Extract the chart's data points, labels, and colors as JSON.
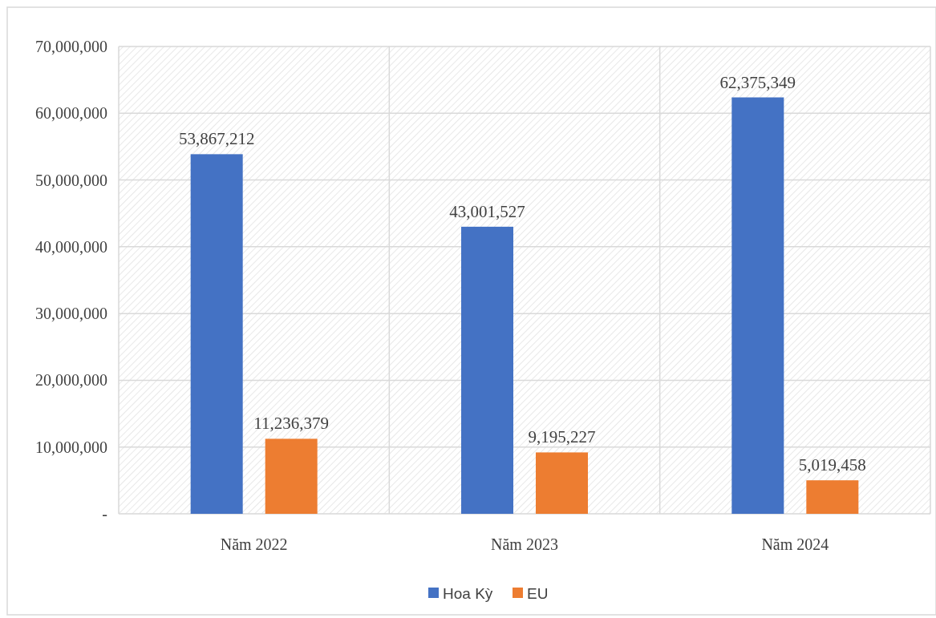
{
  "chart_data": {
    "type": "bar",
    "categories": [
      "Năm 2022",
      "Năm 2023",
      "Năm 2024"
    ],
    "series": [
      {
        "name": "Hoa Kỳ",
        "color": "#4472c4",
        "values": [
          53867212,
          43001527,
          62375349
        ],
        "value_labels": [
          "53,867,212",
          "43,001,527",
          "62,375,349"
        ]
      },
      {
        "name": "EU",
        "color": "#ed7d31",
        "values": [
          11236379,
          9195227,
          5019458
        ],
        "value_labels": [
          "11,236,379",
          "9,195,227",
          "5,019,458"
        ]
      }
    ],
    "ylim": [
      0,
      70000000
    ],
    "yticks": [
      {
        "value": 0,
        "label": "-"
      },
      {
        "value": 10000000,
        "label": "10,000,000"
      },
      {
        "value": 20000000,
        "label": "20,000,000"
      },
      {
        "value": 30000000,
        "label": "30,000,000"
      },
      {
        "value": 40000000,
        "label": "40,000,000"
      },
      {
        "value": 50000000,
        "label": "50,000,000"
      },
      {
        "value": 60000000,
        "label": "60,000,000"
      },
      {
        "value": 70000000,
        "label": "70,000,000"
      }
    ],
    "grid": true,
    "legend": "bottom"
  }
}
